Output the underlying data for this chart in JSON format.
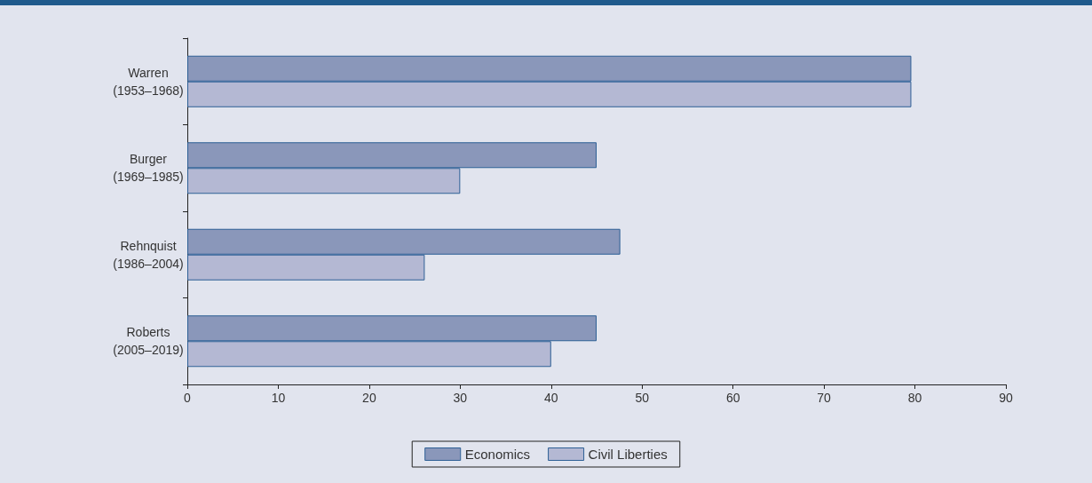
{
  "chart_data": {
    "type": "bar",
    "orientation": "horizontal",
    "categories": [
      "Warren\n(1953–1968)",
      "Burger\n(1969–1985)",
      "Rehnquist\n(1986–2004)",
      "Roberts\n(2005–2019)"
    ],
    "series": [
      {
        "name": "Economics",
        "color": "#8a97ba",
        "values": [
          79.6,
          45,
          47.6,
          45
        ]
      },
      {
        "name": "Civil Liberties",
        "color": "#b4b8d3",
        "values": [
          79.6,
          30,
          26.1,
          40
        ]
      }
    ],
    "xlim": [
      0,
      90
    ],
    "xticks": [
      0,
      10,
      20,
      30,
      40,
      50,
      60,
      70,
      80,
      90
    ],
    "grid": false,
    "legend": "bottom"
  }
}
